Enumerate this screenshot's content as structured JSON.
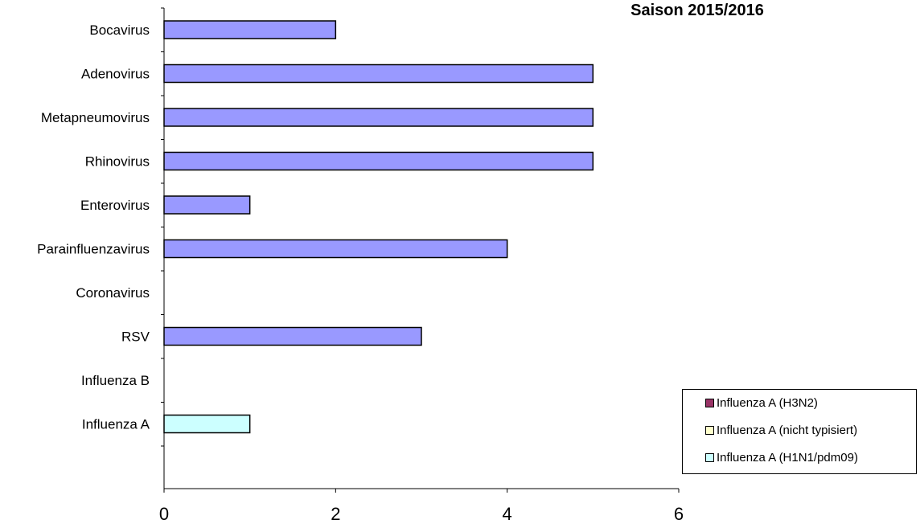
{
  "chart_data": {
    "type": "bar",
    "orientation": "horizontal",
    "stacked": true,
    "title": "Saison 2015/2016",
    "categories": [
      "Bocavirus",
      "Adenovirus",
      "Metapneumovirus",
      "Rhinovirus",
      "Enterovirus",
      "Parainfluenzavirus",
      "Coronavirus",
      "RSV",
      "Influenza B",
      "Influenza A"
    ],
    "values": [
      2,
      5,
      5,
      5,
      1,
      4,
      0,
      3,
      0,
      1
    ],
    "bar_color": "#9999ff",
    "influenza_a_breakdown": [
      {
        "name": "Influenza A (H1N1/pdm09)",
        "value": 1
      },
      {
        "name": "Influenza A (nicht typisiert)",
        "value": 0
      },
      {
        "name": "Influenza A (H3N2)",
        "value": 0
      }
    ],
    "xlim": [
      0,
      6
    ],
    "xticks": [
      "0",
      "2",
      "4",
      "6"
    ],
    "grid": false,
    "legend_position": "bottom-right"
  },
  "legend": [
    {
      "label": "Influenza A (H3N2)",
      "color": "#993366"
    },
    {
      "label": "Influenza A (nicht typisiert)",
      "color": "#ffffcc"
    },
    {
      "label": "Influenza A (H1N1/pdm09)",
      "color": "#ccffff"
    }
  ]
}
